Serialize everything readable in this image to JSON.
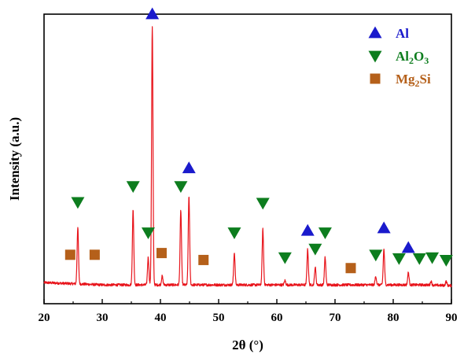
{
  "chart_data": {
    "type": "line",
    "xlabel": "2θ (°)",
    "ylabel": "Intensity (a.u.)",
    "xlim": [
      20,
      90
    ],
    "ylim": [
      0,
      100
    ],
    "x_ticks": [
      "20",
      "30",
      "40",
      "50",
      "60",
      "70",
      "80",
      "90"
    ],
    "grid": false,
    "line_color": "#e8141b",
    "baseline": 6.5,
    "peaks": [
      {
        "x": 25.8,
        "y": 26.3
      },
      {
        "x": 35.3,
        "y": 32.3
      },
      {
        "x": 37.9,
        "y": 16.0
      },
      {
        "x": 38.6,
        "y": 95.7
      },
      {
        "x": 40.3,
        "y": 9.5
      },
      {
        "x": 43.5,
        "y": 32.3
      },
      {
        "x": 44.9,
        "y": 37.2
      },
      {
        "x": 52.7,
        "y": 17.6
      },
      {
        "x": 57.6,
        "y": 25.7
      },
      {
        "x": 61.4,
        "y": 8.0
      },
      {
        "x": 65.3,
        "y": 18.8
      },
      {
        "x": 66.6,
        "y": 12.6
      },
      {
        "x": 68.3,
        "y": 16.0
      },
      {
        "x": 77.0,
        "y": 9.5
      },
      {
        "x": 78.4,
        "y": 18.8
      },
      {
        "x": 82.6,
        "y": 10.8
      },
      {
        "x": 86.5,
        "y": 7.7
      },
      {
        "x": 89.1,
        "y": 7.7
      }
    ],
    "phases": [
      {
        "name": "Al",
        "name_base": "Al",
        "name_sub": "",
        "name_tail": "",
        "marker": "triangle-up",
        "color": "#1a1acc",
        "markers": [
          {
            "x": 38.6,
            "y": 100
          },
          {
            "x": 44.9,
            "y": 46.8
          },
          {
            "x": 65.3,
            "y": 25.2
          },
          {
            "x": 78.4,
            "y": 26.1
          },
          {
            "x": 82.6,
            "y": 19.3
          }
        ]
      },
      {
        "name": "Al2O3",
        "name_base": "Al",
        "name_sub": "2",
        "name_tail": "O",
        "name_sub2": "3",
        "marker": "triangle-down",
        "color": "#0d7d1e",
        "markers": [
          {
            "x": 25.8,
            "y": 35.1
          },
          {
            "x": 35.3,
            "y": 40.6
          },
          {
            "x": 37.9,
            "y": 24.6
          },
          {
            "x": 43.5,
            "y": 40.6
          },
          {
            "x": 52.7,
            "y": 24.6
          },
          {
            "x": 57.6,
            "y": 34.8
          },
          {
            "x": 61.4,
            "y": 16.0
          },
          {
            "x": 66.6,
            "y": 19.0
          },
          {
            "x": 68.3,
            "y": 24.6
          },
          {
            "x": 77.0,
            "y": 16.9
          },
          {
            "x": 81.0,
            "y": 15.7
          },
          {
            "x": 84.5,
            "y": 15.7
          },
          {
            "x": 86.7,
            "y": 16.0
          },
          {
            "x": 89.1,
            "y": 15.1
          }
        ]
      },
      {
        "name": "Mg2Si",
        "name_base": "Mg",
        "name_sub": "2",
        "name_tail": "Si",
        "marker": "square",
        "color": "#b5601a",
        "markers": [
          {
            "x": 24.5,
            "y": 16.9
          },
          {
            "x": 28.7,
            "y": 16.9
          },
          {
            "x": 40.2,
            "y": 17.5
          },
          {
            "x": 47.4,
            "y": 15.1
          },
          {
            "x": 72.7,
            "y": 12.3
          }
        ]
      }
    ],
    "legend": "top-right"
  }
}
